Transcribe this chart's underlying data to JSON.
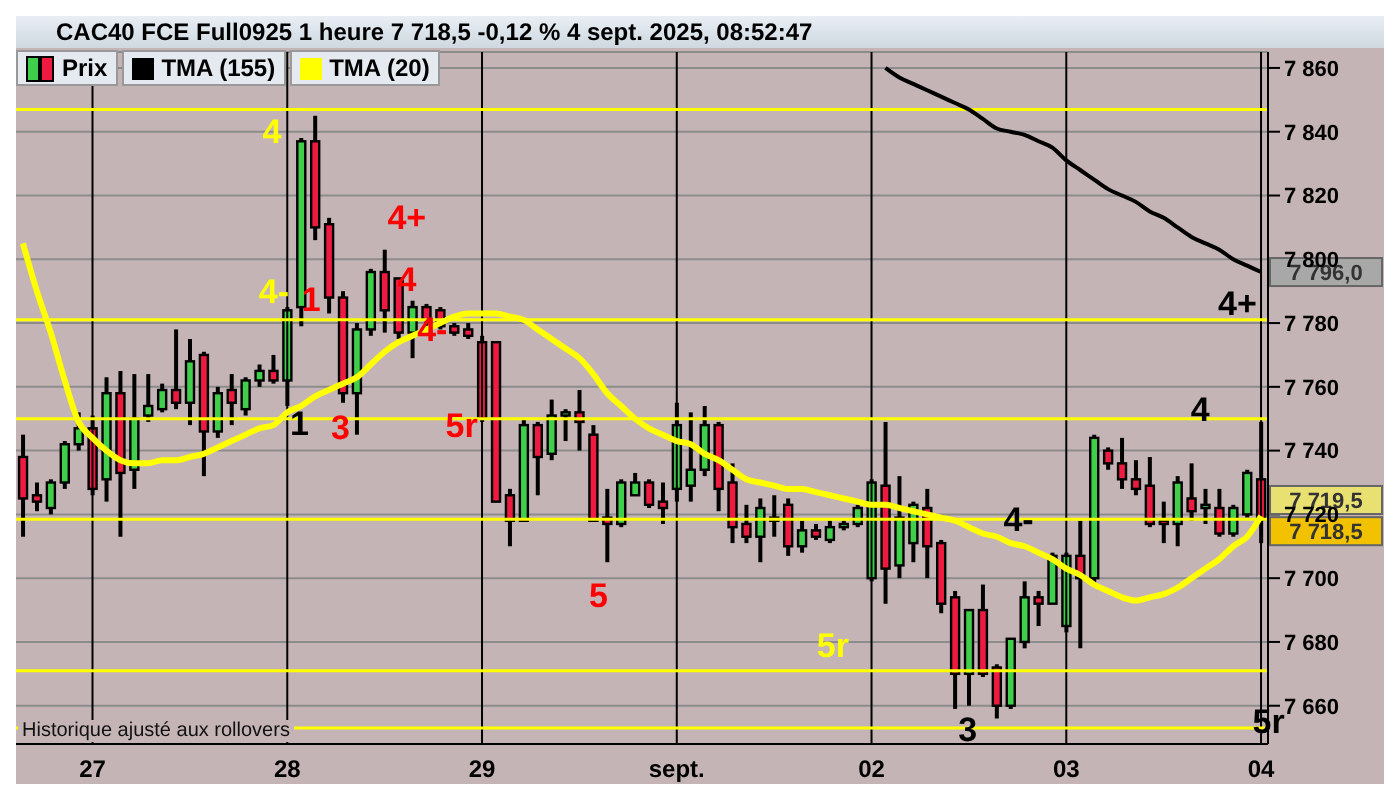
{
  "chart_data": {
    "type": "candlestick",
    "title": "CAC40 FCE Full0925 1 heure 7 718,5 -0,12 % 4 sept. 2025, 08:52:47",
    "categories": [
      null,
      null,
      null,
      null,
      null,
      "27",
      null,
      null,
      null,
      null,
      null,
      null,
      null,
      null,
      null,
      null,
      null,
      null,
      null,
      "28",
      null,
      null,
      null,
      null,
      null,
      null,
      null,
      null,
      null,
      null,
      null,
      null,
      null,
      "29",
      null,
      null,
      null,
      null,
      null,
      null,
      null,
      null,
      null,
      null,
      null,
      null,
      null,
      "sept.",
      null,
      null,
      null,
      null,
      null,
      null,
      null,
      null,
      null,
      null,
      null,
      null,
      null,
      "02",
      null,
      null,
      null,
      null,
      null,
      null,
      null,
      null,
      null,
      null,
      null,
      null,
      null,
      "03",
      null,
      null,
      null,
      null,
      null,
      null,
      null,
      null,
      null,
      null,
      null,
      null,
      null,
      "04"
    ],
    "series": [
      {
        "name": "Prix",
        "colors": [
          "#ee1a40",
          "#ee1a40",
          "#3fcf4a",
          "#3fcf4a",
          "#3fcf4a",
          "#ee1a40",
          "#3fcf4a",
          "#ee1a40",
          "#3fcf4a",
          "#3fcf4a",
          "#3fcf4a",
          "#ee1a40",
          "#3fcf4a",
          "#ee1a40",
          "#3fcf4a",
          "#ee1a40",
          "#3fcf4a",
          "#3fcf4a",
          "#ee1a40",
          "#3fcf4a",
          "#3fcf4a",
          "#ee1a40",
          "#ee1a40",
          "#ee1a40",
          "#3fcf4a",
          "#3fcf4a",
          "#ee1a40",
          "#ee1a40",
          "#3fcf4a",
          "#ee1a40",
          "#ee1a40",
          "#ee1a40",
          "#ee1a40",
          "#ee1a40",
          "#ee1a40",
          "#ee1a40",
          "#3fcf4a",
          "#ee1a40",
          "#3fcf4a",
          "#3fcf4a",
          "#ee1a40",
          "#ee1a40",
          "#ee1a40",
          "#3fcf4a",
          "#3fcf4a",
          "#ee1a40",
          "#ee1a40",
          "#3fcf4a",
          "#3fcf4a",
          "#3fcf4a",
          "#ee1a40",
          "#ee1a40",
          "#ee1a40",
          "#3fcf4a",
          "#3fcf4a",
          "#ee1a40",
          "#3fcf4a",
          "#ee1a40",
          "#3fcf4a",
          "#3fcf4a",
          "#3fcf4a",
          "#3fcf4a",
          "#ee1a40",
          "#3fcf4a",
          "#3fcf4a",
          "#ee1a40",
          "#ee1a40",
          "#ee1a40",
          "#3fcf4a",
          "#ee1a40",
          "#ee1a40",
          "#3fcf4a",
          "#3fcf4a",
          "#ee1a40",
          "#3fcf4a",
          "#3fcf4a",
          "#ee1a40",
          "#3fcf4a",
          "#ee1a40",
          "#ee1a40",
          "#ee1a40",
          "#ee1a40",
          "#ee1a40",
          "#3fcf4a",
          "#ee1a40",
          "#3fcf4a",
          "#ee1a40",
          "#3fcf4a",
          "#3fcf4a",
          "#ee1a40"
        ],
        "ohlc": [
          [
            7738,
            7745,
            7713,
            7725
          ],
          [
            7726,
            7730,
            7721,
            7724
          ],
          [
            7722,
            7731,
            7720,
            7730
          ],
          [
            7730,
            7743,
            7728,
            7742
          ],
          [
            7742,
            7752,
            7740,
            7747
          ],
          [
            7747,
            7751,
            7726,
            7728
          ],
          [
            7731,
            7763,
            7724,
            7758
          ],
          [
            7758,
            7765,
            7713,
            7733
          ],
          [
            7734,
            7764,
            7728,
            7750
          ],
          [
            7751,
            7764,
            7749,
            7754
          ],
          [
            7753,
            7761,
            7752,
            7759
          ],
          [
            7759,
            7778,
            7753,
            7755
          ],
          [
            7755,
            7775,
            7748,
            7768
          ],
          [
            7770,
            7771,
            7732,
            7746
          ],
          [
            7746,
            7760,
            7744,
            7758
          ],
          [
            7759,
            7764,
            7748,
            7755
          ],
          [
            7753,
            7763,
            7751,
            7762
          ],
          [
            7762,
            7767,
            7760,
            7765
          ],
          [
            7765,
            7770,
            7761,
            7762
          ],
          [
            7762,
            7785,
            7754,
            7784
          ],
          [
            7785,
            7838,
            7779,
            7837
          ],
          [
            7837,
            7845,
            7806,
            7810
          ],
          [
            7811,
            7813,
            7783,
            7788
          ],
          [
            7788,
            7790,
            7755,
            7758
          ],
          [
            7758,
            7780,
            7745,
            7778
          ],
          [
            7778,
            7797,
            7776,
            7796
          ],
          [
            7796,
            7803,
            7777,
            7784
          ],
          [
            7794,
            7794,
            7775,
            7777
          ],
          [
            7777,
            7787,
            7769,
            7785
          ],
          [
            7785,
            7786,
            7779,
            7781
          ],
          [
            7784,
            7785,
            7778,
            7779
          ],
          [
            7779,
            7780,
            7776,
            7777
          ],
          [
            7778,
            7780,
            7775,
            7776
          ],
          [
            7774,
            7776,
            7749,
            7750
          ],
          [
            7774,
            7774,
            7724,
            7724
          ],
          [
            7726,
            7728,
            7710,
            7718
          ],
          [
            7718,
            7750,
            7718,
            7748
          ],
          [
            7748,
            7749,
            7726,
            7738
          ],
          [
            7739,
            7756,
            7737,
            7751
          ],
          [
            7751,
            7753,
            7743,
            7752
          ],
          [
            7752,
            7759,
            7740,
            7749
          ],
          [
            7745,
            7748,
            7718,
            7718
          ],
          [
            7719,
            7728,
            7705,
            7717
          ],
          [
            7717,
            7731,
            7716,
            7730
          ],
          [
            7726,
            7733,
            7726,
            7730
          ],
          [
            7730,
            7731,
            7722,
            7723
          ],
          [
            7724,
            7730,
            7717,
            7722
          ],
          [
            7728,
            7755,
            7724,
            7748
          ],
          [
            7729,
            7752,
            7724,
            7734
          ],
          [
            7734,
            7754,
            7732,
            7748
          ],
          [
            7748,
            7749,
            7721,
            7728
          ],
          [
            7730,
            7736,
            7711,
            7716
          ],
          [
            7717,
            7723,
            7711,
            7713
          ],
          [
            7713,
            7725,
            7705,
            7722
          ],
          [
            7718,
            7726,
            7713,
            7719
          ],
          [
            7723,
            7725,
            7707,
            7710
          ],
          [
            7710,
            7718,
            7708,
            7715
          ],
          [
            7715,
            7717,
            7712,
            7713
          ],
          [
            7712,
            7718,
            7711,
            7716
          ],
          [
            7716,
            7718,
            7715,
            7717
          ],
          [
            7717,
            7723,
            7716,
            7722
          ],
          [
            7700,
            7731,
            7699,
            7730
          ],
          [
            7729,
            7749,
            7692,
            7703
          ],
          [
            7704,
            7732,
            7700,
            7719
          ],
          [
            7711,
            7724,
            7705,
            7723
          ],
          [
            7722,
            7728,
            7700,
            7710
          ],
          [
            7711,
            7712,
            7689,
            7692
          ],
          [
            7694,
            7696,
            7659,
            7670
          ],
          [
            7670,
            7690,
            7660,
            7690
          ],
          [
            7690,
            7698,
            7669,
            7670
          ],
          [
            7672,
            7673,
            7656,
            7660
          ],
          [
            7660,
            7681,
            7659,
            7681
          ],
          [
            7680,
            7699,
            7678,
            7694
          ],
          [
            7694,
            7696,
            7685,
            7692
          ],
          [
            7692,
            7708,
            7692,
            7707
          ],
          [
            7685,
            7708,
            7683,
            7707
          ],
          [
            7707,
            7718,
            7678,
            7700
          ],
          [
            7700,
            7745,
            7698,
            7744
          ],
          [
            7740,
            7741,
            7734,
            7736
          ],
          [
            7736,
            7744,
            7728,
            7731
          ],
          [
            7731,
            7737,
            7726,
            7728
          ],
          [
            7729,
            7738,
            7716,
            7717
          ],
          [
            7718,
            7724,
            7711,
            7717
          ],
          [
            7717,
            7732,
            7710,
            7730
          ],
          [
            7725,
            7736,
            7718,
            7721
          ],
          [
            7722,
            7728,
            7717,
            7723
          ],
          [
            7722,
            7728,
            7713,
            7714
          ],
          [
            7714,
            7723,
            7713,
            7722
          ],
          [
            7720,
            7734,
            7719,
            7733
          ],
          [
            7731,
            7749,
            7711,
            7718.5
          ]
        ]
      },
      {
        "type": "line",
        "name": "TMA (155)",
        "color": "#000000",
        "values": [
          null,
          null,
          null,
          null,
          null,
          null,
          null,
          null,
          null,
          null,
          null,
          null,
          null,
          null,
          null,
          null,
          null,
          null,
          null,
          null,
          null,
          null,
          null,
          null,
          null,
          null,
          null,
          null,
          null,
          null,
          null,
          null,
          null,
          null,
          null,
          null,
          null,
          null,
          null,
          null,
          null,
          null,
          null,
          null,
          null,
          null,
          null,
          null,
          null,
          null,
          null,
          null,
          null,
          null,
          null,
          null,
          null,
          null,
          null,
          null,
          null,
          null,
          7860,
          7857,
          7855,
          7853,
          7851,
          7849,
          7847,
          7844,
          7841,
          7840,
          7839,
          7837,
          7835,
          7831,
          7828,
          7825,
          7822,
          7820,
          7818,
          7815,
          7813,
          7810,
          7807,
          7805,
          7803,
          7800,
          7798,
          7796
        ]
      },
      {
        "type": "line",
        "name": "TMA (20)",
        "color": "#ffff00",
        "values": [
          7805,
          7790,
          7777,
          7762,
          7749,
          7744,
          7740,
          7737,
          7736,
          7736,
          7737,
          7737,
          7738,
          7739,
          7741,
          7743,
          7745,
          7747,
          7748,
          7752,
          7754,
          7757,
          7759,
          7761,
          7763,
          7767,
          7771,
          7774,
          7776,
          7778,
          7780,
          7782,
          7783,
          7783,
          7783,
          7782,
          7781,
          7778,
          7775,
          7772,
          7769,
          7764,
          7758,
          7754,
          7750,
          7747,
          7745,
          7743,
          7742,
          7739,
          7737,
          7734,
          7731,
          7730,
          7729,
          7728,
          7728,
          7727,
          7726,
          7725,
          7724,
          7723,
          7723,
          7722,
          7721,
          7720,
          7719,
          7718,
          7716,
          7714,
          7713,
          7711,
          7710,
          7708,
          7706,
          7703,
          7701,
          7698,
          7696,
          7694,
          7693,
          7694,
          7695,
          7697,
          7700,
          7703,
          7706,
          7710,
          7713,
          7719.5
        ]
      }
    ],
    "ylim": [
      7648,
      7865
    ],
    "yticks": [
      {
        "value": 7660,
        "label": "7 660"
      },
      {
        "value": 7680,
        "label": "7 680"
      },
      {
        "value": 7700,
        "label": "7 700"
      },
      {
        "value": 7720,
        "label": "7 720"
      },
      {
        "value": 7740,
        "label": "7 740"
      },
      {
        "value": 7760,
        "label": "7 760"
      },
      {
        "value": 7780,
        "label": "7 780"
      },
      {
        "value": 7800,
        "label": "7 800"
      },
      {
        "value": 7820,
        "label": "7 820"
      },
      {
        "value": 7840,
        "label": "7 840"
      },
      {
        "value": 7860,
        "label": "7 860"
      }
    ],
    "grid": true,
    "legend": "top left",
    "marker": "none",
    "line_style": "solid",
    "ref_lines": [
      {
        "axis": "y",
        "value": 7847,
        "color": "#ffff00"
      },
      {
        "axis": "y",
        "value": 7781,
        "color": "#ffff00"
      },
      {
        "axis": "y",
        "value": 7750,
        "color": "#ffff00"
      },
      {
        "axis": "y",
        "value": 7718.5,
        "label": "7 718,5",
        "color": "#ffff00"
      },
      {
        "axis": "y",
        "value": 7671,
        "color": "#ffff00"
      },
      {
        "axis": "y",
        "value": 7653,
        "color": "#ffff00"
      }
    ],
    "annotations": [
      "4",
      "4-",
      "1",
      "1",
      "3",
      "4+",
      "4",
      "4-",
      "5r",
      "5",
      "5r",
      "3",
      "4-",
      "4",
      "4+",
      "5r",
      {
        "text": "7 796,0",
        "x": "04",
        "y": 7796
      },
      {
        "text": "7 719,5",
        "x": "04",
        "y": 7719.5
      },
      "Historique ajusté aux rollovers"
    ]
  }
}
